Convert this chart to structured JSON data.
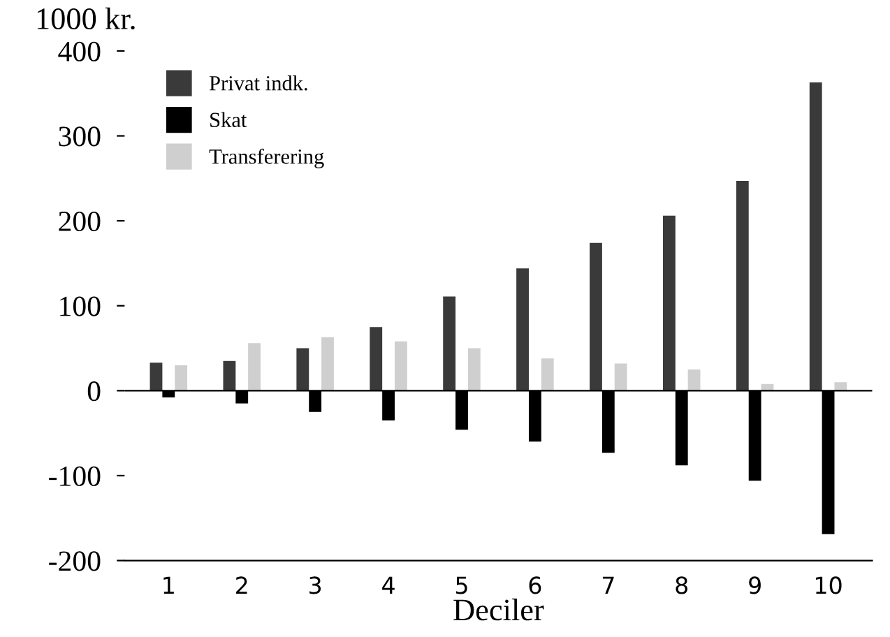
{
  "chart_data": {
    "type": "bar",
    "ylabel": "1000 kr.",
    "xlabel": "Deciler",
    "categories": [
      "1",
      "2",
      "3",
      "4",
      "5",
      "6",
      "7",
      "8",
      "9",
      "10"
    ],
    "series": [
      {
        "name": "Privat indk.",
        "color": "#3a3a3a",
        "values": [
          33,
          35,
          50,
          75,
          111,
          144,
          174,
          206,
          247,
          363
        ]
      },
      {
        "name": "Skat",
        "color": "#000000",
        "values": [
          -8,
          -15,
          -25,
          -35,
          -46,
          -60,
          -73,
          -88,
          -106,
          -169
        ]
      },
      {
        "name": "Transferering",
        "color": "#cfcfcf",
        "values": [
          30,
          56,
          63,
          58,
          50,
          38,
          32,
          25,
          8,
          10
        ]
      }
    ],
    "ylim": [
      -200,
      400
    ],
    "yticks": [
      -200,
      -100,
      0,
      100,
      200,
      300,
      400
    ],
    "legend": "top left"
  }
}
